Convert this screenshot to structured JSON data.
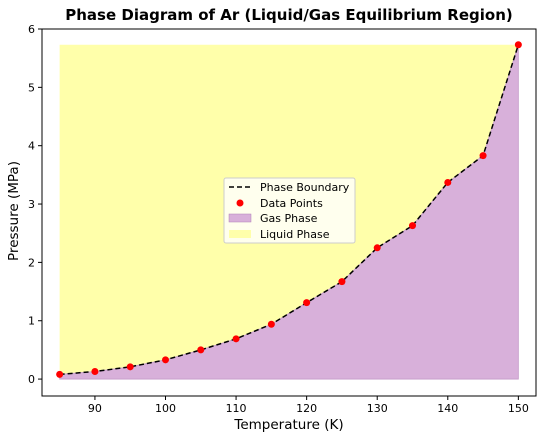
{
  "chart_data": {
    "type": "line",
    "title": "Phase Diagram of Ar (Liquid/Gas Equilibrium Region)",
    "xlabel": "Temperature (K)",
    "ylabel": "Pressure (MPa)",
    "xlim": [
      82.5,
      152.5
    ],
    "ylim": [
      -0.29,
      6.0
    ],
    "xticks": [
      90,
      100,
      110,
      120,
      130,
      140,
      150
    ],
    "yticks": [
      0,
      1,
      2,
      3,
      4,
      5,
      6
    ],
    "grid": false,
    "legend_position": "center",
    "x": [
      85,
      90,
      95,
      100,
      105,
      110,
      115,
      120,
      125,
      130,
      135,
      140,
      145,
      150
    ],
    "series": [
      {
        "name": "Phase Boundary",
        "style": "dashed-line",
        "color": "#000000",
        "values": [
          0.08,
          0.13,
          0.21,
          0.33,
          0.5,
          0.69,
          0.94,
          1.31,
          1.67,
          2.25,
          2.63,
          3.37,
          3.83,
          5.73
        ]
      },
      {
        "name": "Data Points",
        "style": "markers",
        "color": "#ff0000",
        "values": [
          0.08,
          0.13,
          0.21,
          0.33,
          0.5,
          0.69,
          0.94,
          1.31,
          1.67,
          2.25,
          2.63,
          3.37,
          3.83,
          5.73
        ]
      }
    ],
    "regions": [
      {
        "name": "Gas Phase",
        "color": "#d8b0da",
        "between": [
          "baseline",
          "boundary"
        ],
        "baseline": 0
      },
      {
        "name": "Liquid Phase",
        "color": "#ffffaa",
        "between": [
          "boundary",
          "top"
        ],
        "top": 5.73
      }
    ]
  }
}
